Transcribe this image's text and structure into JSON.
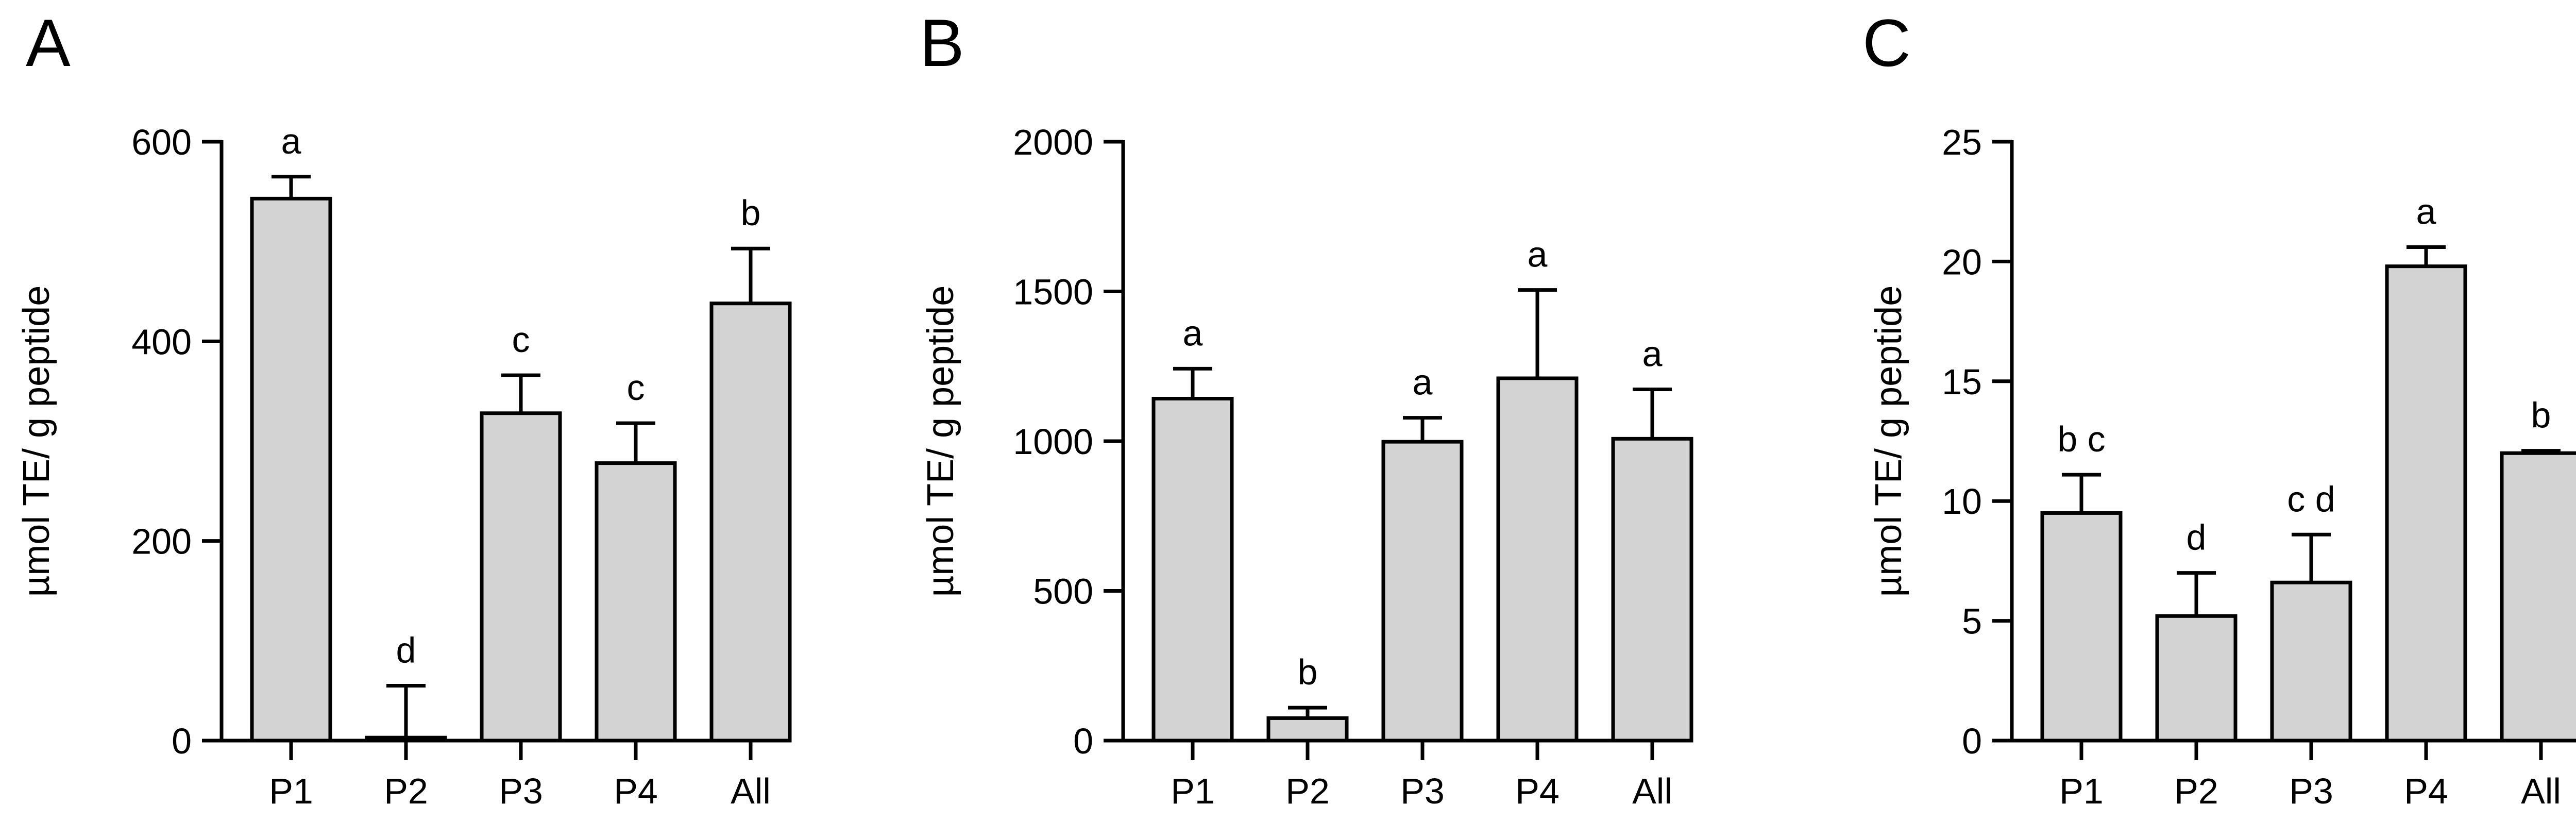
{
  "chart_data": [
    {
      "type": "bar",
      "panel_label": "A",
      "ylabel": "µmol TE/ g peptide",
      "categories": [
        "P1",
        "P2",
        "P3",
        "P4",
        "All"
      ],
      "values": [
        543,
        3,
        328,
        278,
        438
      ],
      "errors": [
        22,
        52,
        38,
        40,
        55
      ],
      "letters": [
        "a",
        "d",
        "c",
        "c",
        "b"
      ],
      "ylim": [
        0,
        600
      ],
      "yticks": [
        0,
        200,
        400,
        600
      ],
      "ytick_labels": [
        "0",
        "200",
        "400",
        "600"
      ],
      "grid": false
    },
    {
      "type": "bar",
      "panel_label": "B",
      "ylabel": "µmol TE/ g peptide",
      "categories": [
        "P1",
        "P2",
        "P3",
        "P4",
        "All"
      ],
      "values": [
        1142,
        75,
        998,
        1210,
        1008
      ],
      "errors": [
        100,
        35,
        80,
        295,
        165
      ],
      "letters": [
        "a",
        "b",
        "a",
        "a",
        "a"
      ],
      "ylim": [
        0,
        2000
      ],
      "yticks": [
        0,
        500,
        1000,
        1500,
        2000
      ],
      "ytick_labels": [
        "0",
        "500",
        "1000",
        "1500",
        "2000"
      ],
      "grid": false
    },
    {
      "type": "bar",
      "panel_label": "C",
      "ylabel": "µmol TE/ g peptide",
      "categories": [
        "P1",
        "P2",
        "P3",
        "P4",
        "All"
      ],
      "values": [
        9.5,
        5.2,
        6.6,
        19.8,
        12.0
      ],
      "errors": [
        1.6,
        1.8,
        2.0,
        0.8,
        0.1
      ],
      "letters": [
        "b c",
        "d",
        "c d",
        "a",
        "b"
      ],
      "ylim": [
        0,
        25
      ],
      "yticks": [
        0,
        5,
        10,
        15,
        20,
        25
      ],
      "ytick_labels": [
        "0",
        "5",
        "10",
        "15",
        "20",
        "25"
      ],
      "grid": false
    }
  ]
}
